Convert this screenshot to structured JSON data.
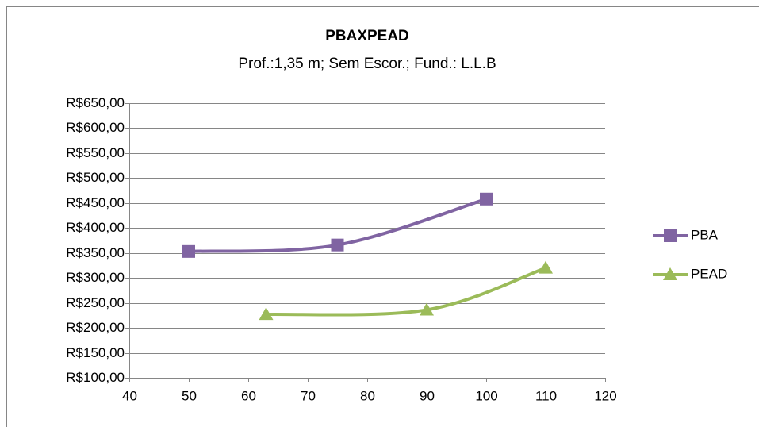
{
  "chart_data": {
    "type": "line",
    "title": "PBAXPEAD",
    "subtitle": "Prof.:1,35 m; Sem Escor.; Fund.: L.L.B",
    "series": [
      {
        "name": "PBA",
        "color": "#8064a2",
        "marker": "square",
        "x": [
          50,
          75,
          100
        ],
        "values": [
          353,
          366,
          458
        ]
      },
      {
        "name": "PEAD",
        "color": "#9bbb59",
        "marker": "triangle",
        "x": [
          63,
          90,
          110
        ],
        "values": [
          227,
          236,
          320
        ]
      }
    ],
    "xlim": [
      40,
      120
    ],
    "xticks": [
      40,
      50,
      60,
      70,
      80,
      90,
      100,
      110,
      120
    ],
    "ylim": [
      100,
      650
    ],
    "yticks": [
      {
        "value": 100,
        "label": "R$100,00"
      },
      {
        "value": 150,
        "label": "R$150,00"
      },
      {
        "value": 200,
        "label": "R$200,00"
      },
      {
        "value": 250,
        "label": "R$250,00"
      },
      {
        "value": 300,
        "label": "R$300,00"
      },
      {
        "value": 350,
        "label": "R$350,00"
      },
      {
        "value": 400,
        "label": "R$400,00"
      },
      {
        "value": 450,
        "label": "R$450,00"
      },
      {
        "value": 500,
        "label": "R$500,00"
      },
      {
        "value": 550,
        "label": "R$550,00"
      },
      {
        "value": 600,
        "label": "R$600,00"
      },
      {
        "value": 650,
        "label": "R$650,00"
      }
    ],
    "grid": true,
    "smooth": true,
    "legend": "right"
  }
}
